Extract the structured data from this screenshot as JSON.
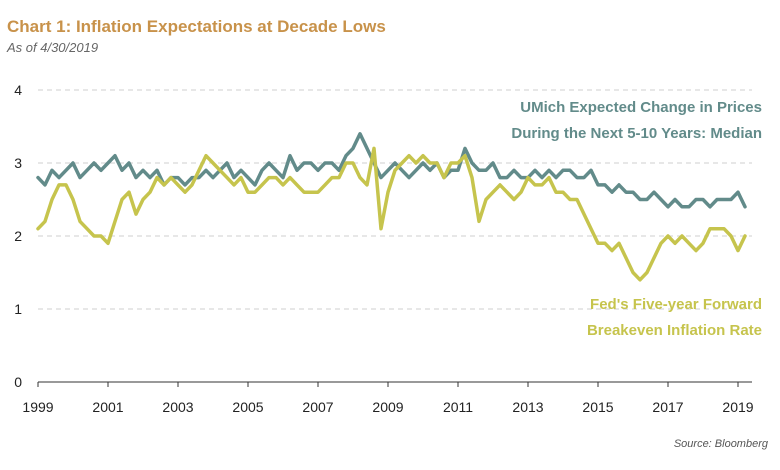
{
  "chart_data": {
    "type": "line",
    "title": "Chart 1: Inflation Expectations at Decade Lows",
    "subtitle": "As of 4/30/2019",
    "source": "Source: Bloomberg",
    "xlabel": "",
    "ylabel": "",
    "xlim": [
      1999,
      2019.4
    ],
    "ylim": [
      0,
      4
    ],
    "x_ticks": [
      "1999",
      "2001",
      "2003",
      "2005",
      "2007",
      "2009",
      "2011",
      "2013",
      "2015",
      "2017",
      "2019"
    ],
    "y_ticks": [
      "0",
      "1",
      "2",
      "3",
      "4"
    ],
    "grid": "horizontal-dashed",
    "series": [
      {
        "name_lines": [
          "UMich Expected Change in Prices",
          "During the Next 5-10 Years: Median"
        ],
        "color": "#628b8a",
        "x": [
          1999.0,
          1999.2,
          1999.4,
          1999.6,
          1999.8,
          2000.0,
          2000.2,
          2000.4,
          2000.6,
          2000.8,
          2001.0,
          2001.2,
          2001.4,
          2001.6,
          2001.8,
          2002.0,
          2002.2,
          2002.4,
          2002.6,
          2002.8,
          2003.0,
          2003.2,
          2003.4,
          2003.6,
          2003.8,
          2004.0,
          2004.2,
          2004.4,
          2004.6,
          2004.8,
          2005.0,
          2005.2,
          2005.4,
          2005.6,
          2005.8,
          2006.0,
          2006.2,
          2006.4,
          2006.6,
          2006.8,
          2007.0,
          2007.2,
          2007.4,
          2007.6,
          2007.8,
          2008.0,
          2008.2,
          2008.4,
          2008.6,
          2008.8,
          2009.0,
          2009.2,
          2009.4,
          2009.6,
          2009.8,
          2010.0,
          2010.2,
          2010.4,
          2010.6,
          2010.8,
          2011.0,
          2011.2,
          2011.4,
          2011.6,
          2011.8,
          2012.0,
          2012.2,
          2012.4,
          2012.6,
          2012.8,
          2013.0,
          2013.2,
          2013.4,
          2013.6,
          2013.8,
          2014.0,
          2014.2,
          2014.4,
          2014.6,
          2014.8,
          2015.0,
          2015.2,
          2015.4,
          2015.6,
          2015.8,
          2016.0,
          2016.2,
          2016.4,
          2016.6,
          2016.8,
          2017.0,
          2017.2,
          2017.4,
          2017.6,
          2017.8,
          2018.0,
          2018.2,
          2018.4,
          2018.6,
          2018.8,
          2019.0,
          2019.2
        ],
        "values": [
          2.8,
          2.7,
          2.9,
          2.8,
          2.9,
          3.0,
          2.8,
          2.9,
          3.0,
          2.9,
          3.0,
          3.1,
          2.9,
          3.0,
          2.8,
          2.9,
          2.8,
          2.9,
          2.7,
          2.8,
          2.8,
          2.7,
          2.8,
          2.8,
          2.9,
          2.8,
          2.9,
          3.0,
          2.8,
          2.9,
          2.8,
          2.7,
          2.9,
          3.0,
          2.9,
          2.8,
          3.1,
          2.9,
          3.0,
          3.0,
          2.9,
          3.0,
          3.0,
          2.9,
          3.1,
          3.2,
          3.4,
          3.2,
          3.0,
          2.8,
          2.9,
          3.0,
          2.9,
          2.8,
          2.9,
          3.0,
          2.9,
          3.0,
          2.8,
          2.9,
          2.9,
          3.2,
          3.0,
          2.9,
          2.9,
          3.0,
          2.8,
          2.8,
          2.9,
          2.8,
          2.8,
          2.9,
          2.8,
          2.9,
          2.8,
          2.9,
          2.9,
          2.8,
          2.8,
          2.9,
          2.7,
          2.7,
          2.6,
          2.7,
          2.6,
          2.6,
          2.5,
          2.5,
          2.6,
          2.5,
          2.4,
          2.5,
          2.4,
          2.4,
          2.5,
          2.5,
          2.4,
          2.5,
          2.5,
          2.5,
          2.6,
          2.4
        ]
      },
      {
        "name_lines": [
          "Fed's Five-year Forward",
          "Breakeven Inflation Rate"
        ],
        "color": "#c6c44d",
        "x": [
          1999.0,
          1999.2,
          1999.4,
          1999.6,
          1999.8,
          2000.0,
          2000.2,
          2000.4,
          2000.6,
          2000.8,
          2001.0,
          2001.2,
          2001.4,
          2001.6,
          2001.8,
          2002.0,
          2002.2,
          2002.4,
          2002.6,
          2002.8,
          2003.0,
          2003.2,
          2003.4,
          2003.6,
          2003.8,
          2004.0,
          2004.2,
          2004.4,
          2004.6,
          2004.8,
          2005.0,
          2005.2,
          2005.4,
          2005.6,
          2005.8,
          2006.0,
          2006.2,
          2006.4,
          2006.6,
          2006.8,
          2007.0,
          2007.2,
          2007.4,
          2007.6,
          2007.8,
          2008.0,
          2008.2,
          2008.4,
          2008.6,
          2008.8,
          2009.0,
          2009.2,
          2009.4,
          2009.6,
          2009.8,
          2010.0,
          2010.2,
          2010.4,
          2010.6,
          2010.8,
          2011.0,
          2011.2,
          2011.4,
          2011.6,
          2011.8,
          2012.0,
          2012.2,
          2012.4,
          2012.6,
          2012.8,
          2013.0,
          2013.2,
          2013.4,
          2013.6,
          2013.8,
          2014.0,
          2014.2,
          2014.4,
          2014.6,
          2014.8,
          2015.0,
          2015.2,
          2015.4,
          2015.6,
          2015.8,
          2016.0,
          2016.2,
          2016.4,
          2016.6,
          2016.8,
          2017.0,
          2017.2,
          2017.4,
          2017.6,
          2017.8,
          2018.0,
          2018.2,
          2018.4,
          2018.6,
          2018.8,
          2019.0,
          2019.2
        ],
        "values": [
          2.1,
          2.2,
          2.5,
          2.7,
          2.7,
          2.5,
          2.2,
          2.1,
          2.0,
          2.0,
          1.9,
          2.2,
          2.5,
          2.6,
          2.3,
          2.5,
          2.6,
          2.8,
          2.7,
          2.8,
          2.7,
          2.6,
          2.7,
          2.9,
          3.1,
          3.0,
          2.9,
          2.8,
          2.7,
          2.8,
          2.6,
          2.6,
          2.7,
          2.8,
          2.8,
          2.7,
          2.8,
          2.7,
          2.6,
          2.6,
          2.6,
          2.7,
          2.8,
          2.8,
          3.0,
          3.0,
          2.8,
          2.7,
          3.2,
          2.1,
          2.6,
          2.9,
          3.0,
          3.1,
          3.0,
          3.1,
          3.0,
          3.0,
          2.8,
          3.0,
          3.0,
          3.1,
          2.8,
          2.2,
          2.5,
          2.6,
          2.7,
          2.6,
          2.5,
          2.6,
          2.8,
          2.7,
          2.7,
          2.8,
          2.6,
          2.6,
          2.5,
          2.5,
          2.3,
          2.1,
          1.9,
          1.9,
          1.8,
          1.9,
          1.7,
          1.5,
          1.4,
          1.5,
          1.7,
          1.9,
          2.0,
          1.9,
          2.0,
          1.9,
          1.8,
          1.9,
          2.1,
          2.1,
          2.1,
          2.0,
          1.8,
          2.0
        ]
      }
    ]
  }
}
